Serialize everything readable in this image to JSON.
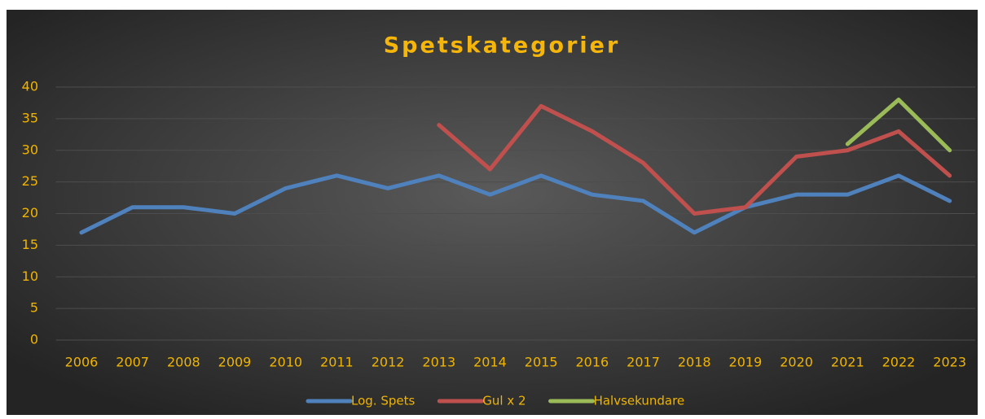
{
  "chart_data": {
    "type": "line",
    "title": "Spetskategorier",
    "categories": [
      "2006",
      "2007",
      "2008",
      "2009",
      "2010",
      "2011",
      "2012",
      "2013",
      "2014",
      "2015",
      "2016",
      "2017",
      "2018",
      "2019",
      "2020",
      "2021",
      "2022",
      "2023"
    ],
    "series": [
      {
        "name": "Log. Spets",
        "color": "#4f81bd",
        "values": [
          17,
          21,
          21,
          20,
          24,
          26,
          24,
          26,
          23,
          26,
          23,
          22,
          17,
          21,
          23,
          23,
          26,
          22
        ]
      },
      {
        "name": "Gul x 2",
        "color": "#c0504d",
        "values": [
          null,
          null,
          null,
          null,
          null,
          null,
          null,
          34,
          27,
          37,
          33,
          28,
          20,
          21,
          29,
          30,
          33,
          26
        ]
      },
      {
        "name": "Halvsekundare",
        "color": "#9bbb59",
        "values": [
          null,
          null,
          null,
          null,
          null,
          null,
          null,
          null,
          null,
          null,
          null,
          null,
          null,
          null,
          null,
          31,
          38,
          30
        ]
      }
    ],
    "ylim": [
      0,
      40
    ],
    "yticks": [
      0,
      5,
      10,
      15,
      20,
      25,
      30,
      35,
      40
    ],
    "grid": true,
    "legend": "bottom"
  }
}
